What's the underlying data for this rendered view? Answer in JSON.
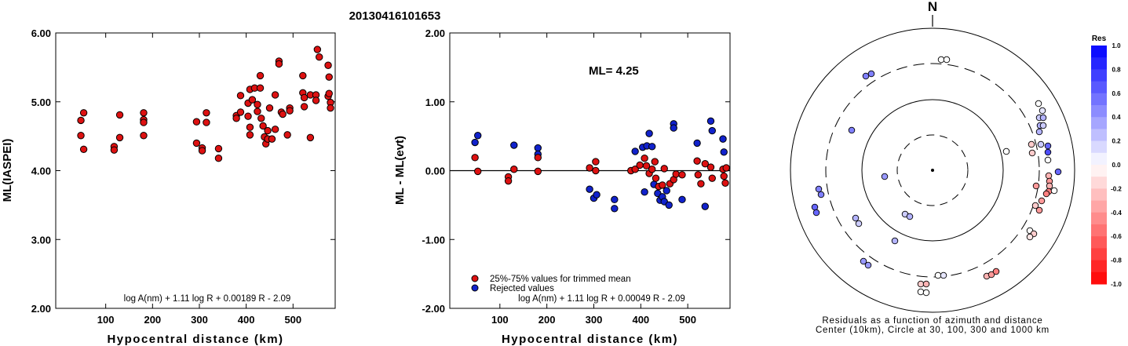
{
  "title": "20130416101653",
  "colors": {
    "trimmed": "#dd1111",
    "rejected": "#1122cc",
    "outline": "#000000"
  },
  "chart_data": [
    {
      "type": "scatter",
      "name": "left",
      "xlabel": "Hypocentral distance (km)",
      "ylabel": "ML(IASPEI)",
      "xlim": [
        0,
        590
      ],
      "ylim": [
        2.0,
        6.0
      ],
      "xticks": [
        "100",
        "200",
        "300",
        "400",
        "500"
      ],
      "xtick_values": [
        100,
        200,
        300,
        400,
        500
      ],
      "yticks": [
        "2.00",
        "3.00",
        "4.00",
        "5.00",
        "6.00"
      ],
      "ytick_values": [
        2,
        3,
        4,
        5,
        6
      ],
      "formula": "log A(nm) + 1.11 log R + 0.00189 R - 2.09",
      "points": [
        [
          47,
          4.73
        ],
        [
          47,
          4.51
        ],
        [
          53,
          4.84
        ],
        [
          53,
          4.31
        ],
        [
          118,
          4.35
        ],
        [
          118,
          4.3
        ],
        [
          130,
          4.81
        ],
        [
          130,
          4.48
        ],
        [
          181,
          4.84
        ],
        [
          181,
          4.74
        ],
        [
          181,
          4.7
        ],
        [
          181,
          4.51
        ],
        [
          294,
          4.71
        ],
        [
          294,
          4.4
        ],
        [
          306,
          4.33
        ],
        [
          306,
          4.29
        ],
        [
          315,
          4.84
        ],
        [
          315,
          4.7
        ],
        [
          341,
          4.32
        ],
        [
          341,
          4.18
        ],
        [
          379,
          4.8
        ],
        [
          379,
          4.76
        ],
        [
          388,
          5.09
        ],
        [
          388,
          4.85
        ],
        [
          404,
          4.98
        ],
        [
          404,
          4.79
        ],
        [
          408,
          4.63
        ],
        [
          408,
          4.52
        ],
        [
          408,
          5.18
        ],
        [
          413,
          5.03
        ],
        [
          418,
          5.2
        ],
        [
          424,
          4.96
        ],
        [
          424,
          4.86
        ],
        [
          430,
          5.2
        ],
        [
          430,
          5.38
        ],
        [
          432,
          4.76
        ],
        [
          436,
          4.65
        ],
        [
          439,
          4.49
        ],
        [
          442,
          4.39
        ],
        [
          446,
          4.58
        ],
        [
          446,
          4.46
        ],
        [
          450,
          4.91
        ],
        [
          455,
          4.46
        ],
        [
          462,
          5.1
        ],
        [
          462,
          4.6
        ],
        [
          470,
          5.59
        ],
        [
          470,
          5.55
        ],
        [
          475,
          4.85
        ],
        [
          478,
          4.82
        ],
        [
          488,
          4.52
        ],
        [
          493,
          4.91
        ],
        [
          493,
          4.87
        ],
        [
          521,
          5.38
        ],
        [
          521,
          5.13
        ],
        [
          524,
          5.06
        ],
        [
          524,
          4.93
        ],
        [
          537,
          5.1
        ],
        [
          537,
          4.48
        ],
        [
          549,
          5.1
        ],
        [
          549,
          5.02
        ],
        [
          552,
          5.76
        ],
        [
          556,
          5.65
        ],
        [
          575,
          5.53
        ],
        [
          575,
          5.08
        ],
        [
          577,
          5.36
        ],
        [
          577,
          5.12
        ],
        [
          580,
          4.99
        ],
        [
          580,
          4.91
        ]
      ]
    },
    {
      "type": "scatter",
      "name": "middle",
      "xlabel": "Hypocentral distance (km)",
      "ylabel": "ML - ML(evt)",
      "xlim": [
        0,
        590
      ],
      "ylim": [
        -2.0,
        2.0
      ],
      "xticks": [
        "100",
        "200",
        "300",
        "400",
        "500"
      ],
      "xtick_values": [
        100,
        200,
        300,
        400,
        500
      ],
      "yticks": [
        "-2.00",
        "-1.00",
        "0.00",
        "1.00",
        "2.00"
      ],
      "ytick_values": [
        -2,
        -1,
        0,
        1,
        2
      ],
      "annotation": "ML=  4.25",
      "formula": "log A(nm) + 1.11 log R + 0.00049 R - 2.09",
      "legend": [
        "25%-75% values for trimmed mean",
        "Rejected values"
      ],
      "trimmed": [
        [
          47,
          0.19
        ],
        [
          53,
          -0.01
        ],
        [
          118,
          -0.09
        ],
        [
          118,
          -0.15
        ],
        [
          130,
          0.02
        ],
        [
          181,
          -0.01
        ],
        [
          181,
          0.19
        ],
        [
          291,
          0.04
        ],
        [
          304,
          0.0
        ],
        [
          304,
          0.13
        ],
        [
          379,
          0.0
        ],
        [
          388,
          0.02
        ],
        [
          398,
          0.08
        ],
        [
          408,
          0.18
        ],
        [
          412,
          0.07
        ],
        [
          418,
          -0.04
        ],
        [
          424,
          0.02
        ],
        [
          430,
          0.13
        ],
        [
          432,
          -0.11
        ],
        [
          438,
          -0.23
        ],
        [
          446,
          -0.21
        ],
        [
          450,
          0.03
        ],
        [
          462,
          -0.19
        ],
        [
          470,
          -0.13
        ],
        [
          475,
          -0.05
        ],
        [
          488,
          -0.06
        ],
        [
          520,
          0.14
        ],
        [
          522,
          -0.06
        ],
        [
          528,
          -0.19
        ],
        [
          537,
          0.1
        ],
        [
          549,
          0.05
        ],
        [
          552,
          -0.11
        ],
        [
          575,
          0.02
        ],
        [
          577,
          -0.08
        ],
        [
          580,
          -0.18
        ],
        [
          582,
          0.04
        ]
      ],
      "rejected": [
        [
          47,
          0.41
        ],
        [
          53,
          0.51
        ],
        [
          130,
          0.37
        ],
        [
          181,
          0.33
        ],
        [
          181,
          0.24
        ],
        [
          291,
          -0.27
        ],
        [
          300,
          -0.4
        ],
        [
          306,
          -0.35
        ],
        [
          344,
          -0.42
        ],
        [
          344,
          -0.55
        ],
        [
          388,
          0.28
        ],
        [
          404,
          0.34
        ],
        [
          408,
          -0.31
        ],
        [
          413,
          0.36
        ],
        [
          418,
          0.54
        ],
        [
          424,
          0.35
        ],
        [
          428,
          -0.2
        ],
        [
          436,
          -0.33
        ],
        [
          441,
          -0.43
        ],
        [
          446,
          -0.38
        ],
        [
          450,
          -0.45
        ],
        [
          455,
          -0.29
        ],
        [
          460,
          -0.5
        ],
        [
          470,
          0.68
        ],
        [
          470,
          0.62
        ],
        [
          488,
          -0.42
        ],
        [
          520,
          0.4
        ],
        [
          537,
          -0.52
        ],
        [
          549,
          0.72
        ],
        [
          552,
          0.58
        ],
        [
          575,
          0.46
        ],
        [
          577,
          0.27
        ]
      ]
    },
    {
      "type": "polar-scatter",
      "name": "right",
      "north_label": "N",
      "caption": [
        "Residuals as a function of azimuth and distance",
        "Center (10km), Circle at 30, 100, 300 and 1000 km"
      ],
      "legend_title": "Res",
      "legend_ticks": [
        "1.0",
        "0.8",
        "0.6",
        "0.4",
        "0.2",
        "0.0",
        "-0.2",
        "-0.4",
        "-0.6",
        "-0.8",
        "-1.0"
      ],
      "legend_values": [
        1.0,
        0.8,
        0.6,
        0.4,
        0.2,
        0.0,
        -0.2,
        -0.4,
        -0.6,
        -0.8,
        -1.0
      ],
      "points_xy_res": [
        [
          1199,
          76,
          0.0
        ],
        [
          1206,
          76,
          0.0
        ],
        [
          1103,
          97,
          0.5
        ],
        [
          1110,
          94,
          0.5
        ],
        [
          1323,
          132,
          0.0
        ],
        [
          1328,
          141,
          0.1
        ],
        [
          1324,
          150,
          0.2
        ],
        [
          1329,
          150,
          0.3
        ],
        [
          1325,
          160,
          0.3
        ],
        [
          1329,
          160,
          0.2
        ],
        [
          1324,
          168,
          0.3
        ],
        [
          1085,
          166,
          0.5
        ],
        [
          1282,
          193,
          0.0
        ],
        [
          1314,
          184,
          -0.2
        ],
        [
          1326,
          184,
          0.2
        ],
        [
          1335,
          186,
          0.6
        ],
        [
          1335,
          194,
          0.7
        ],
        [
          1315,
          195,
          -0.2
        ],
        [
          1335,
          204,
          0.0
        ],
        [
          1348,
          219,
          0.6
        ],
        [
          1336,
          224,
          -0.3
        ],
        [
          1337,
          231,
          -0.4
        ],
        [
          1337,
          237,
          -0.3
        ],
        [
          1336,
          244,
          -0.5
        ],
        [
          1343,
          243,
          0.0
        ],
        [
          1320,
          237,
          -0.4
        ],
        [
          1333,
          247,
          -0.5
        ],
        [
          1327,
          256,
          -0.4
        ],
        [
          1319,
          262,
          -0.2
        ],
        [
          1324,
          268,
          -0.4
        ],
        [
          1127,
          225,
          0.4
        ],
        [
          1043,
          241,
          0.5
        ],
        [
          1046,
          248,
          0.5
        ],
        [
          1038,
          264,
          0.6
        ],
        [
          1040,
          271,
          0.6
        ],
        [
          1153,
          273,
          0.2
        ],
        [
          1159,
          276,
          0.3
        ],
        [
          1090,
          278,
          0.3
        ],
        [
          1094,
          285,
          0.2
        ],
        [
          1312,
          294,
          0.0
        ],
        [
          1317,
          298,
          -0.2
        ],
        [
          1312,
          302,
          -0.1
        ],
        [
          1140,
          307,
          0.3
        ],
        [
          1100,
          333,
          0.4
        ],
        [
          1106,
          338,
          0.4
        ],
        [
          1195,
          351,
          0.0
        ],
        [
          1202,
          351,
          0.1
        ],
        [
          1173,
          362,
          -0.2
        ],
        [
          1180,
          362,
          -0.3
        ],
        [
          1173,
          372,
          0.0
        ],
        [
          1180,
          373,
          0.0
        ],
        [
          1257,
          352,
          -0.3
        ],
        [
          1263,
          350,
          -0.4
        ],
        [
          1269,
          346,
          -0.5
        ]
      ]
    }
  ]
}
